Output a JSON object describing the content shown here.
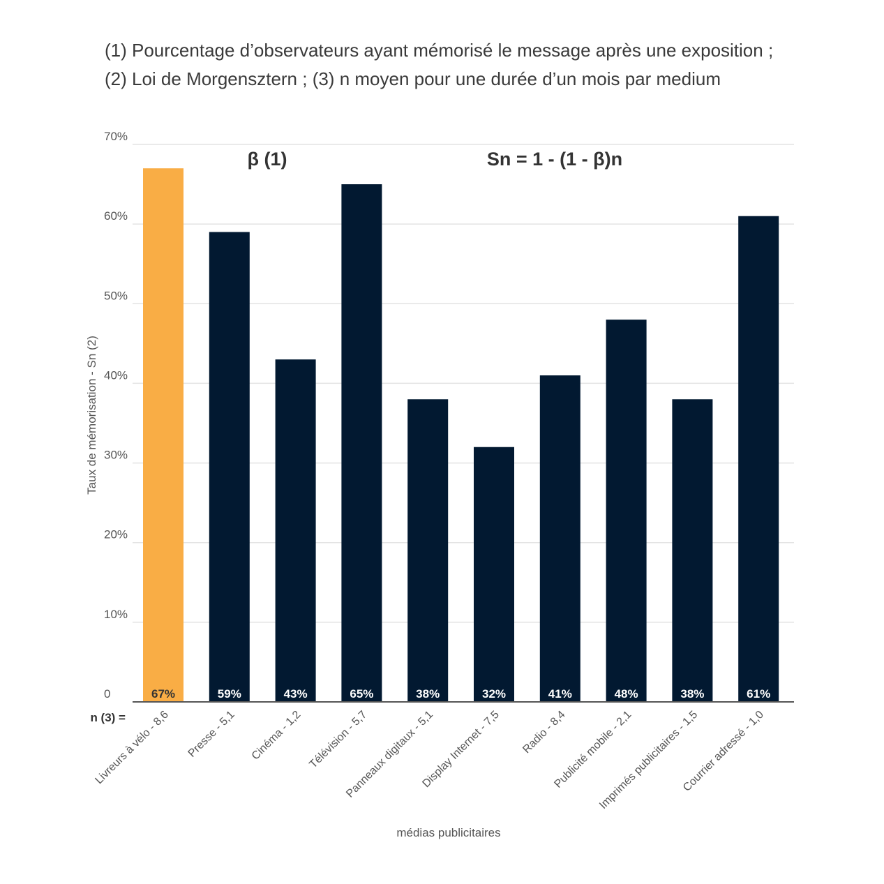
{
  "caption": {
    "line1": "(1) Pourcentage d’observateurs ayant mémorisé le message après une exposition ;",
    "line2": "(2) Loi de Morgensztern ; (3) n moyen pour une durée d’un mois par medium"
  },
  "chart_data": {
    "type": "bar",
    "title": "",
    "xlabel": "médias publicitaires",
    "ylabel": "Taux de mémorisation - Sn (2)",
    "ylim": [
      0,
      70
    ],
    "yticks": [
      {
        "value": 0,
        "label": "0"
      },
      {
        "value": 10,
        "label": "10%"
      },
      {
        "value": 20,
        "label": "20%"
      },
      {
        "value": 30,
        "label": "30%"
      },
      {
        "value": 40,
        "label": "40%"
      },
      {
        "value": 50,
        "label": "50%"
      },
      {
        "value": 60,
        "label": "60%"
      },
      {
        "value": 70,
        "label": "70%"
      }
    ],
    "grid": true,
    "annotations": {
      "beta": "β (1)",
      "formula": "Sn = 1 - (1 - β)n",
      "n_label": "n (3) ="
    },
    "categories": [
      "Livreurs à vélo - 8,6",
      "Presse - 5,1",
      "Cinéma - 1,2",
      "Télévision - 5,7",
      "Panneaux digitaux - 5,1",
      "Display Internet - 7,5",
      "Radio - 8,4",
      "Publicité mobile - 2,1",
      "Imprimés publicitaires - 1,5",
      "Courrier adressé - 1,0"
    ],
    "values": [
      67,
      59,
      43,
      65,
      38,
      32,
      41,
      48,
      38,
      61
    ],
    "value_labels": [
      "67%",
      "59%",
      "43%",
      "65%",
      "38%",
      "32%",
      "41%",
      "48%",
      "38%",
      "61%"
    ],
    "highlight_index": 0,
    "colors": {
      "highlight": "#F9AD45",
      "bar": "#021931",
      "highlight_label": "#333333",
      "bar_label": "#ffffff",
      "grid": "#e3e3e3",
      "axis": "#555555"
    }
  }
}
